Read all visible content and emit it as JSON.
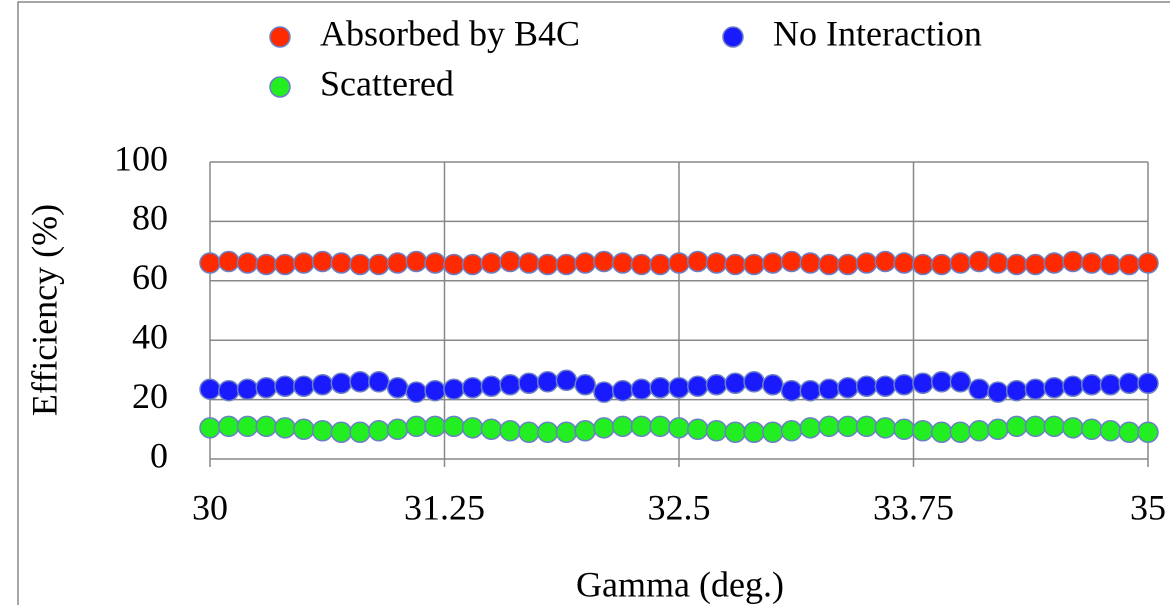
{
  "chart_data": {
    "type": "scatter",
    "x_label": "Gamma (deg.)",
    "y_label": "Efficiency (%)",
    "x": [
      30.0,
      30.1,
      30.2,
      30.3,
      30.4,
      30.5,
      30.6,
      30.7,
      30.8,
      30.9,
      31.0,
      31.1,
      31.2,
      31.3,
      31.4,
      31.5,
      31.6,
      31.7,
      31.8,
      31.9,
      32.0,
      32.1,
      32.2,
      32.3,
      32.4,
      32.5,
      32.6,
      32.7,
      32.8,
      32.9,
      33.0,
      33.1,
      33.2,
      33.3,
      33.4,
      33.5,
      33.6,
      33.7,
      33.8,
      33.9,
      34.0,
      34.1,
      34.2,
      34.3,
      34.4,
      34.5,
      34.6,
      34.7,
      34.8,
      34.9,
      35.0
    ],
    "series": [
      {
        "name": "Absorbed by B4C",
        "color": "#ff2a00",
        "values": [
          66,
          66.5,
          66,
          65.5,
          65.5,
          66,
          66.5,
          66,
          65.5,
          65.5,
          66,
          66.5,
          66,
          65.5,
          65.5,
          66,
          66.5,
          66,
          65.5,
          65.5,
          66,
          66.5,
          66,
          65.5,
          65.5,
          66,
          66.5,
          66,
          65.5,
          65.5,
          66,
          66.5,
          66,
          65.5,
          65.5,
          66,
          66.5,
          66,
          65.5,
          65.5,
          66,
          66.5,
          66,
          65.5,
          65.5,
          66,
          66.5,
          66,
          65.5,
          65.5,
          66
        ]
      },
      {
        "name": "No Interaction",
        "color": "#1a1aff",
        "values": [
          23.5,
          23,
          23.5,
          24,
          24.5,
          24.5,
          25,
          25.5,
          26,
          26,
          24,
          22.5,
          23,
          23.5,
          24,
          24.5,
          25,
          25.5,
          26,
          26.5,
          25,
          22.5,
          23,
          23.5,
          24,
          24,
          24.5,
          25,
          25.5,
          26,
          25,
          23,
          23,
          23.5,
          24,
          24.5,
          24.5,
          25,
          25.5,
          26,
          26,
          23.5,
          22.5,
          23,
          23.5,
          24,
          24.5,
          25,
          25,
          25.5,
          25.5
        ]
      },
      {
        "name": "Scattered",
        "color": "#22ee22",
        "values": [
          10.5,
          11,
          11,
          11,
          10.5,
          10,
          9.5,
          9,
          9,
          9.5,
          10,
          11,
          11,
          11,
          10.5,
          10,
          9.5,
          9,
          9,
          9,
          9.5,
          10.5,
          11,
          11,
          11,
          10.5,
          10,
          9.5,
          9,
          9,
          9,
          9.5,
          10.5,
          11,
          11,
          11,
          10.5,
          10,
          9.5,
          9,
          9,
          9.5,
          10,
          11,
          11,
          11,
          10.5,
          10,
          9.5,
          9,
          9
        ]
      }
    ],
    "xlim": [
      30,
      35
    ],
    "xticks": [
      30,
      31.25,
      32.5,
      33.75,
      35
    ],
    "ylim": [
      0,
      100
    ],
    "yticks": [
      0,
      20,
      40,
      60,
      80,
      100
    ],
    "grid": true,
    "legend": "top"
  }
}
